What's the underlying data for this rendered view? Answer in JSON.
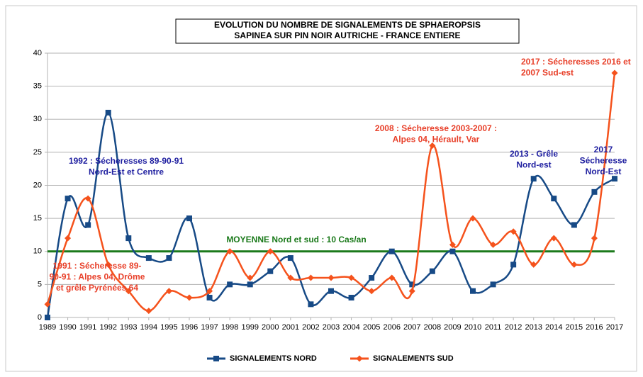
{
  "chart_data": {
    "type": "line",
    "title": [
      "EVOLUTION DU NOMBRE DE SIGNALEMENTS DE SPHAEROPSIS",
      "SAPINEA SUR PIN NOIR AUTRICHE - FRANCE ENTIERE"
    ],
    "x": [
      1989,
      1990,
      1991,
      1992,
      1993,
      1994,
      1995,
      1996,
      1997,
      1998,
      1999,
      2000,
      2001,
      2002,
      2003,
      2004,
      2005,
      2006,
      2007,
      2008,
      2009,
      2010,
      2011,
      2012,
      2013,
      2014,
      2015,
      2016,
      2017
    ],
    "xlim": [
      1989,
      2017
    ],
    "ylim": [
      0,
      40
    ],
    "yticks": [
      0,
      5,
      10,
      15,
      20,
      25,
      30,
      35,
      40
    ],
    "grid": true,
    "series": [
      {
        "name": "SIGNALEMENTS NORD",
        "color": "#174a86",
        "marker": "square",
        "values": [
          0,
          18,
          14,
          31,
          12,
          9,
          9,
          15,
          3,
          5,
          5,
          7,
          9,
          2,
          4,
          3,
          6,
          10,
          5,
          7,
          10,
          4,
          5,
          8,
          21,
          18,
          14,
          19,
          21
        ]
      },
      {
        "name": "SIGNALEMENTS SUD",
        "color": "#f5521c",
        "marker": "diamond",
        "values": [
          2,
          12,
          18,
          8,
          4,
          1,
          4,
          3,
          4,
          10,
          6,
          10,
          6,
          6,
          6,
          6,
          4,
          6,
          4,
          26,
          11,
          15,
          11,
          13,
          8,
          12,
          8,
          12,
          37
        ]
      }
    ],
    "mean": {
      "value": 10,
      "color": "#1b7a1b",
      "label": "MOYENNE Nord et sud : 10 Cas/an"
    },
    "annotations": [
      {
        "lines": [
          "1992 : Sécheresses 89-90-91",
          "Nord-Est et Centre"
        ],
        "color": "#1f1fa0"
      },
      {
        "lines": [
          "1991 : Sécheresse 89-",
          "90-91 : Alpes 04, Drôme",
          "et grêle Pyrénées 64"
        ],
        "color": "#e8402a"
      },
      {
        "lines": [
          "2008 : Sécheresse 2003-2007 :",
          "Alpes 04, Hérault, Var"
        ],
        "color": "#e8402a"
      },
      {
        "lines": [
          "2013 - Grêle",
          "Nord-est"
        ],
        "color": "#1f1fa0"
      },
      {
        "lines": [
          "2017",
          "Sécheresse",
          "Nord-Est"
        ],
        "color": "#1f1fa0"
      },
      {
        "lines": [
          "2017 : Sécheresses 2016 et",
          "2007 Sud-est"
        ],
        "color": "#e8402a"
      }
    ]
  }
}
